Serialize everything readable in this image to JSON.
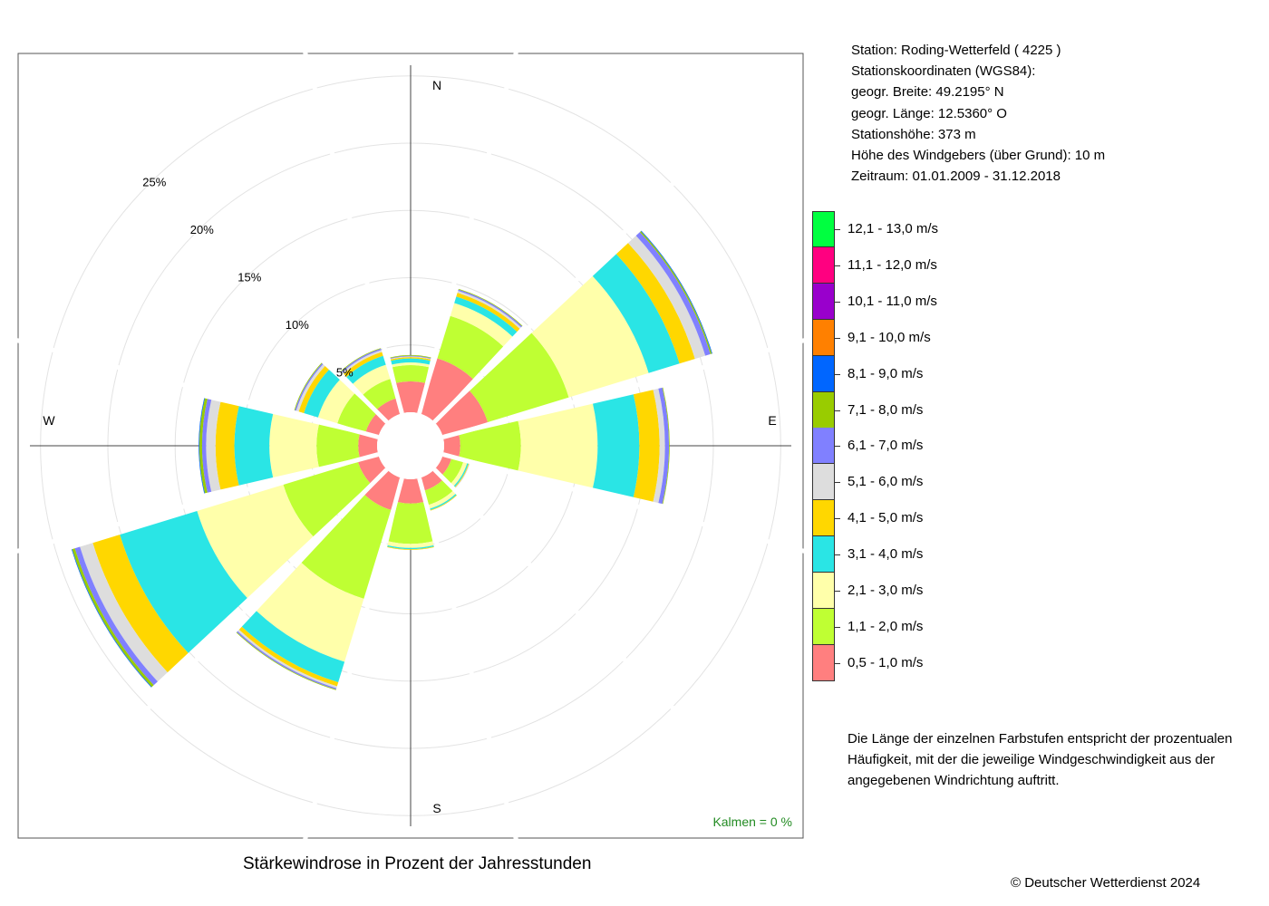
{
  "station_info": {
    "station": "Station:  Roding-Wetterfeld  ( 4225 )",
    "coords_title": "Stationskoordinaten (WGS84):",
    "lat": "geogr. Breite: 49.2195° N",
    "lon": "geogr. Länge: 12.5360° O",
    "height": "Stationshöhe: 373 m",
    "sensor": "Höhe des Windgebers (über Grund): 10 m",
    "period": "Zeitraum: 01.01.2009 - 31.12.2018"
  },
  "caption": "Stärkewindrose in Prozent der Jahresstunden",
  "note": "Die Länge der einzelnen Farbstufen entspricht der prozentualen Häufigkeit, mit der die jeweilige Windgeschwindigkeit aus der angegebenen Windrichtung auftritt.",
  "copyright": "© Deutscher Wetterdienst  2024",
  "calm": "Kalmen  =  0 %",
  "chart_data": {
    "type": "windrose",
    "unit": "%",
    "directions_deg": [
      0,
      30,
      60,
      90,
      120,
      150,
      180,
      210,
      240,
      270,
      300,
      330
    ],
    "compass_labels": [
      {
        "text": "N",
        "deg": 0
      },
      {
        "text": "E",
        "deg": 90
      },
      {
        "text": "S",
        "deg": 180
      },
      {
        "text": "W",
        "deg": 270
      }
    ],
    "rings": [
      5,
      10,
      15,
      20,
      25
    ],
    "ring_labels": [
      "5%",
      "10%",
      "15%",
      "20%",
      "25%"
    ],
    "calm_percent": 0,
    "speed_classes": [
      {
        "label": "0,5 - 1,0 m/s",
        "color": "#FF7F7F"
      },
      {
        "label": "1,1 - 2,0 m/s",
        "color": "#BFFF33"
      },
      {
        "label": "2,1 - 3,0 m/s",
        "color": "#FFFFAA"
      },
      {
        "label": "3,1 - 4,0 m/s",
        "color": "#2AE5E5"
      },
      {
        "label": "4,1 - 5,0 m/s",
        "color": "#FFD700"
      },
      {
        "label": "5,1 - 6,0 m/s",
        "color": "#DDDDDD"
      },
      {
        "label": "6,1 - 7,0 m/s",
        "color": "#8080FF"
      },
      {
        "label": "7,1 - 8,0 m/s",
        "color": "#99CC00"
      },
      {
        "label": "8,1 - 9,0 m/s",
        "color": "#0066FF"
      },
      {
        "label": "9,1 - 10,0 m/s",
        "color": "#FF8000"
      },
      {
        "label": "10,1 - 11,0 m/s",
        "color": "#9900CC"
      },
      {
        "label": "11,1 - 12,0 m/s",
        "color": "#FF0080"
      },
      {
        "label": "12,1 - 13,0 m/s",
        "color": "#00FF40"
      }
    ],
    "series": [
      {
        "deg": 0,
        "values": [
          2.3,
          1.2,
          0.2,
          0.3,
          0.1,
          0.05,
          0.05,
          0.05,
          0,
          0,
          0,
          0,
          0
        ]
      },
      {
        "deg": 30,
        "values": [
          4.3,
          3.3,
          1.0,
          0.5,
          0.3,
          0.15,
          0.1,
          0.05,
          0,
          0,
          0,
          0,
          0
        ]
      },
      {
        "deg": 60,
        "values": [
          3.5,
          6.3,
          6.2,
          2.4,
          1.2,
          0.8,
          0.4,
          0.1,
          0.05,
          0,
          0,
          0,
          0
        ]
      },
      {
        "deg": 90,
        "values": [
          1.2,
          4.5,
          5.7,
          3.1,
          1.5,
          0.4,
          0.3,
          0.05,
          0,
          0,
          0,
          0,
          0
        ]
      },
      {
        "deg": 120,
        "values": [
          0.7,
          0.9,
          0.3,
          0.1,
          0.05,
          0.05,
          0,
          0,
          0,
          0,
          0,
          0,
          0
        ]
      },
      {
        "deg": 150,
        "values": [
          1.0,
          1.1,
          0.3,
          0.1,
          0.05,
          0,
          0,
          0,
          0,
          0,
          0,
          0,
          0
        ]
      },
      {
        "deg": 180,
        "values": [
          1.8,
          3.0,
          0.3,
          0.1,
          0.05,
          0,
          0,
          0,
          0,
          0,
          0,
          0,
          0
        ]
      },
      {
        "deg": 210,
        "values": [
          2.5,
          6.9,
          4.9,
          1.6,
          0.3,
          0.15,
          0.1,
          0.05,
          0,
          0,
          0,
          0,
          0
        ]
      },
      {
        "deg": 240,
        "values": [
          1.6,
          5.8,
          6.7,
          6.0,
          2.1,
          1.0,
          0.4,
          0.2,
          0.05,
          0,
          0,
          0,
          0
        ]
      },
      {
        "deg": 270,
        "values": [
          1.4,
          3.1,
          3.5,
          2.6,
          1.4,
          0.7,
          0.3,
          0.2,
          0.05,
          0,
          0,
          0,
          0
        ]
      },
      {
        "deg": 300,
        "values": [
          1.0,
          2.2,
          1.5,
          1.1,
          0.4,
          0.2,
          0.1,
          0.05,
          0,
          0,
          0,
          0,
          0
        ]
      },
      {
        "deg": 330,
        "values": [
          1.2,
          1.5,
          1.1,
          0.7,
          0.3,
          0.15,
          0.1,
          0.05,
          0,
          0,
          0,
          0,
          0
        ]
      }
    ]
  }
}
